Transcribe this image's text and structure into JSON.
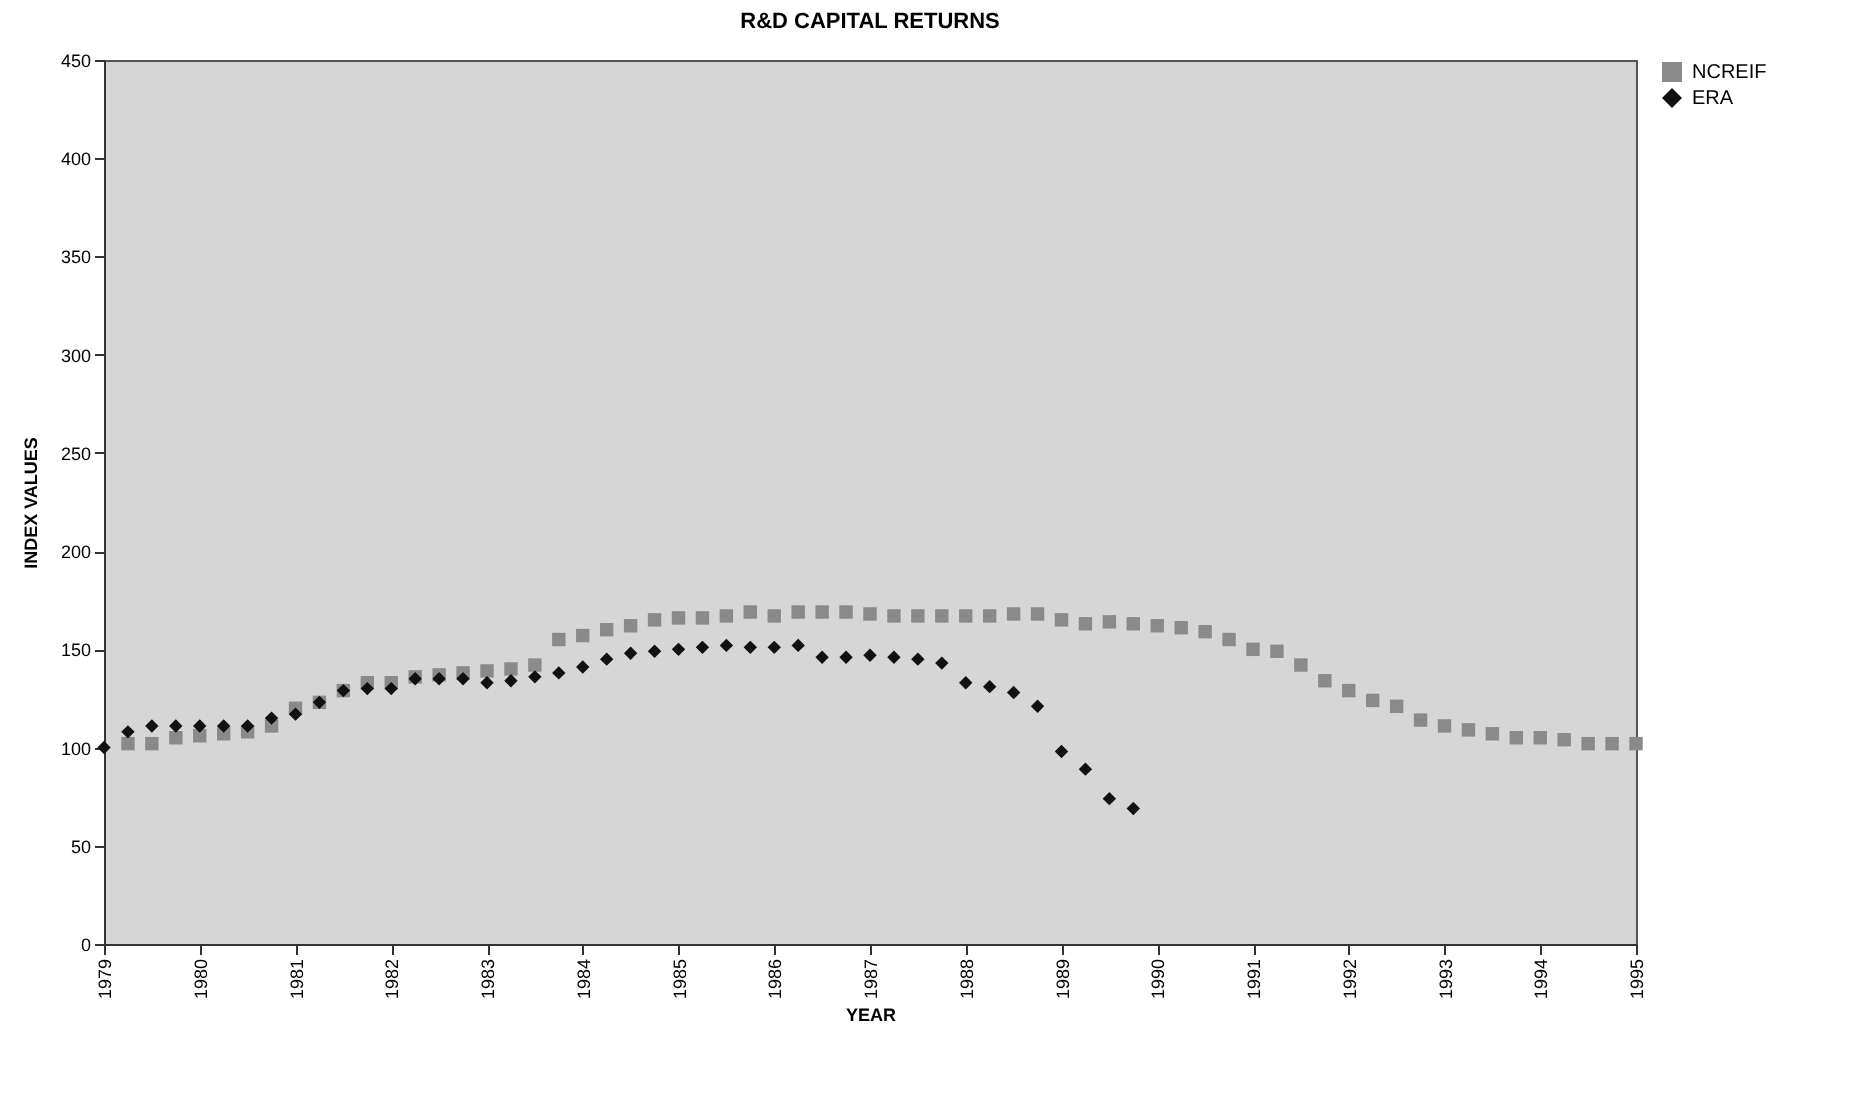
{
  "chart_data": {
    "type": "scatter",
    "title": "R&D CAPITAL RETURNS",
    "xlabel": "YEAR",
    "ylabel": "INDEX VALUES",
    "x": [
      1979,
      1979.25,
      1979.5,
      1979.75,
      1980,
      1980.25,
      1980.5,
      1980.75,
      1981,
      1981.25,
      1981.5,
      1981.75,
      1982,
      1982.25,
      1982.5,
      1982.75,
      1983,
      1983.25,
      1983.5,
      1983.75,
      1984,
      1984.25,
      1984.5,
      1984.75,
      1985,
      1985.25,
      1985.5,
      1985.75,
      1986,
      1986.25,
      1986.5,
      1986.75,
      1987,
      1987.25,
      1987.5,
      1987.75,
      1988,
      1988.25,
      1988.5,
      1988.75,
      1989,
      1989.25,
      1989.5,
      1989.75,
      1990,
      1990.25,
      1990.5,
      1990.75,
      1991,
      1991.25,
      1991.5,
      1991.75,
      1992,
      1992.25,
      1992.5,
      1992.75,
      1993,
      1993.25,
      1993.5,
      1993.75,
      1994,
      1994.25,
      1994.5,
      1994.75,
      1995
    ],
    "series": [
      {
        "name": "NCREIF",
        "color": "#8a8a8a",
        "marker": "square",
        "values": [
          null,
          102,
          102,
          105,
          106,
          107,
          108,
          111,
          120,
          123,
          129,
          133,
          133,
          136,
          137,
          138,
          139,
          140,
          142,
          155,
          157,
          160,
          162,
          165,
          166,
          166,
          167,
          169,
          167,
          169,
          169,
          169,
          168,
          167,
          167,
          167,
          167,
          167,
          168,
          168,
          165,
          163,
          164,
          163,
          162,
          161,
          159,
          155,
          150,
          149,
          142,
          134,
          129,
          124,
          121,
          114,
          111,
          109,
          107,
          105,
          105,
          104,
          102,
          102,
          102
        ]
      },
      {
        "name": "ERA",
        "color": "#111111",
        "marker": "diamond",
        "values": [
          100,
          108,
          111,
          111,
          111,
          111,
          111,
          115,
          117,
          123,
          129,
          130,
          130,
          135,
          135,
          135,
          133,
          134,
          136,
          138,
          141,
          145,
          148,
          149,
          150,
          151,
          152,
          151,
          151,
          152,
          146,
          146,
          147,
          146,
          145,
          143,
          133,
          131,
          128,
          121,
          98,
          89,
          74,
          69,
          null,
          null,
          null,
          null,
          null,
          null,
          null,
          null,
          null,
          null,
          null,
          null,
          null,
          null,
          null,
          null,
          null,
          null,
          null,
          null,
          null
        ]
      }
    ],
    "xlim": [
      1979,
      1995
    ],
    "xticks": [
      1979,
      1980,
      1981,
      1982,
      1983,
      1984,
      1985,
      1986,
      1987,
      1988,
      1989,
      1990,
      1991,
      1992,
      1993,
      1994,
      1995
    ],
    "ylim": [
      0,
      450
    ],
    "yticks": [
      0,
      50,
      100,
      150,
      200,
      250,
      300,
      350,
      400,
      450
    ],
    "legend": "right"
  }
}
